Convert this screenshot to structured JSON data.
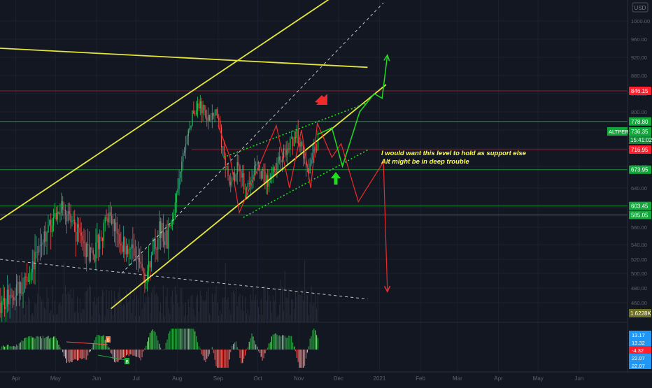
{
  "currency_badge": "USD",
  "annotation": {
    "line1": "I would want this level to hold as support else",
    "line2": "Alt might be in deep trouble"
  },
  "colors": {
    "background": "#131722",
    "grid": "#1c2030",
    "candle_up": "#26a69a",
    "candle_up_bright": "#22c35e",
    "candle_down": "#ef5350",
    "trend_yellow": "#e5e53a",
    "dashed_white": "#c8c8c8",
    "green_arrow": "#1fdc1f",
    "red_arrow": "#ef2a2a",
    "hline_green": "#1f8f3a",
    "hline_red": "#8f1f2a",
    "label_red": "#ff1f2e",
    "label_green": "#12a83c",
    "label_blue": "#2196f3"
  },
  "chart_data": {
    "type": "candlestick",
    "symbol": "ALTPERP",
    "y_unit": "USD",
    "ylim": [
      452,
      1040
    ],
    "y_ticks": [
      1000,
      960,
      920,
      880,
      840,
      800,
      760,
      720,
      680,
      640,
      600,
      560,
      540,
      520,
      500,
      480,
      460
    ],
    "x_ticks": [
      "Apr",
      "May",
      "Jun",
      "Jul",
      "Aug",
      "Sep",
      "Oct",
      "Nov",
      "Dec",
      "2021",
      "Feb",
      "Mar",
      "Apr",
      "May",
      "Jun"
    ],
    "x_tick_dates": [
      "2020-04-01",
      "2020-05-01",
      "2020-06-01",
      "2020-07-01",
      "2020-08-01",
      "2020-09-01",
      "2020-10-01",
      "2020-11-01",
      "2020-12-01",
      "2021-01-01",
      "2021-02-01",
      "2021-03-01",
      "2021-04-01",
      "2021-05-01",
      "2021-06-01"
    ],
    "horizontal_levels": [
      {
        "value": 846.15,
        "label": "846.15",
        "style": "red"
      },
      {
        "value": 778.8,
        "label": "778.80",
        "style": "green"
      },
      {
        "value": 716.95,
        "label": "716.95",
        "style": "red"
      },
      {
        "value": 673.95,
        "label": "673.95",
        "style": "green"
      },
      {
        "value": 603.45,
        "label": "603.45",
        "style": "green"
      },
      {
        "value": 585.05,
        "label": "585.05",
        "style": "green"
      }
    ],
    "price_labels": [
      {
        "text": "ALTPERP",
        "value": 736.35,
        "style": "green"
      },
      {
        "text": "736.35",
        "value": 736.35,
        "style": "green"
      },
      {
        "text": "15:41:02",
        "value": 721.5,
        "style": "green"
      }
    ],
    "volume_label": "1.6228K",
    "price_anchors": [
      [
        "2020-03-20",
        460
      ],
      [
        "2020-04-05",
        480
      ],
      [
        "2020-04-20",
        540
      ],
      [
        "2020-05-05",
        600
      ],
      [
        "2020-05-15",
        560
      ],
      [
        "2020-05-28",
        520
      ],
      [
        "2020-06-10",
        580
      ],
      [
        "2020-06-20",
        540
      ],
      [
        "2020-07-01",
        520
      ],
      [
        "2020-07-08",
        495
      ],
      [
        "2020-07-18",
        560
      ],
      [
        "2020-07-24",
        545
      ],
      [
        "2020-07-30",
        600
      ],
      [
        "2020-08-06",
        720
      ],
      [
        "2020-08-12",
        790
      ],
      [
        "2020-08-18",
        815
      ],
      [
        "2020-08-26",
        780
      ],
      [
        "2020-08-31",
        800
      ],
      [
        "2020-09-05",
        690
      ],
      [
        "2020-09-10",
        640
      ],
      [
        "2020-09-15",
        680
      ],
      [
        "2020-09-22",
        640
      ],
      [
        "2020-09-30",
        680
      ],
      [
        "2020-10-08",
        650
      ],
      [
        "2020-10-18",
        700
      ],
      [
        "2020-10-25",
        730
      ],
      [
        "2020-10-30",
        750
      ],
      [
        "2020-11-05",
        695
      ],
      [
        "2020-11-08",
        680
      ],
      [
        "2020-11-15",
        736
      ]
    ],
    "trend_lines": [
      {
        "name": "upper-channel",
        "from": [
          "2020-03-20",
          575
        ],
        "to": [
          "2020-11-25",
          1050
        ]
      },
      {
        "name": "lower-channel",
        "from": [
          "2020-06-12",
          452
        ],
        "to": [
          "2021-01-06",
          860
        ]
      },
      {
        "name": "descending-resistance",
        "from": [
          "2020-03-20",
          940
        ],
        "to": [
          "2020-12-23",
          898
        ]
      },
      {
        "name": "channel-midline",
        "from": [
          "2020-06-20",
          500
        ],
        "to": [
          "2021-01-04",
          1040
        ]
      },
      {
        "name": "descending-support",
        "from": [
          "2020-03-20",
          520
        ],
        "to": [
          "2020-12-23",
          465
        ]
      }
    ],
    "projection_green": [
      [
        "2020-11-15",
        750
      ],
      [
        "2020-11-26",
        765
      ],
      [
        "2020-12-04",
        680
      ],
      [
        "2020-12-17",
        800
      ],
      [
        "2020-12-28",
        840
      ],
      [
        "2021-01-03",
        830
      ],
      [
        "2021-01-07",
        925
      ]
    ],
    "projection_red": [
      [
        "2020-09-01",
        770
      ],
      [
        "2020-09-10",
        700
      ],
      [
        "2020-09-17",
        590
      ],
      [
        "2020-10-15",
        770
      ],
      [
        "2020-10-25",
        640
      ],
      [
        "2020-11-03",
        760
      ],
      [
        "2020-11-10",
        640
      ],
      [
        "2020-11-15",
        775
      ],
      [
        "2020-11-26",
        700
      ],
      [
        "2020-12-03",
        730
      ],
      [
        "2020-12-16",
        612
      ],
      [
        "2021-01-04",
        690
      ],
      [
        "2021-01-07",
        475
      ]
    ],
    "oscillator": {
      "labels": [
        "13.17",
        "13.32",
        "-4.32",
        "22.07",
        "22.07"
      ],
      "divergence_badges": [
        "B",
        "B"
      ]
    }
  }
}
